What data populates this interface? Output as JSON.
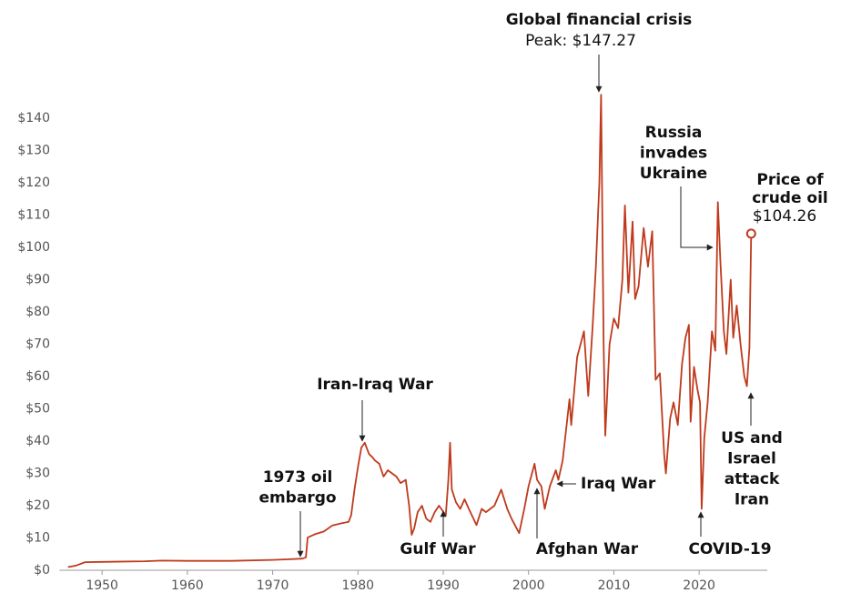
{
  "chart_data": {
    "type": "line",
    "series": [
      {
        "name": "Price of crude oil",
        "color": "#bf3a1c",
        "x": [
          1946,
          1947,
          1948,
          1950,
          1955,
          1957,
          1960,
          1965,
          1970,
          1972,
          1973.5,
          1973.9,
          1974.1,
          1975,
          1976,
          1977,
          1978,
          1978.9,
          1979.2,
          1979.6,
          1980.0,
          1980.4,
          1980.8,
          1981.0,
          1981.3,
          1981.7,
          1982,
          1982.5,
          1983,
          1983.5,
          1984,
          1984.5,
          1985,
          1985.6,
          1986.0,
          1986.3,
          1986.6,
          1987,
          1987.5,
          1988,
          1988.5,
          1989,
          1989.5,
          1990.3,
          1990.6,
          1990.8,
          1991.0,
          1991.5,
          1992,
          1992.5,
          1993,
          1993.9,
          1994.5,
          1995,
          1996,
          1996.8,
          1997.5,
          1998,
          1998.9,
          1999.5,
          2000,
          2000.7,
          2001,
          2001.5,
          2001.9,
          2002.5,
          2003.2,
          2003.5,
          2004,
          2004.8,
          2005,
          2005.7,
          2006.5,
          2007.0,
          2007.5,
          2007.9,
          2008.3,
          2008.5,
          2008.8,
          2009.0,
          2009.5,
          2010,
          2010.5,
          2011.0,
          2011.3,
          2011.7,
          2012.2,
          2012.5,
          2012.9,
          2013.5,
          2014.0,
          2014.5,
          2014.9,
          2015.4,
          2015.9,
          2016.1,
          2016.6,
          2017,
          2017.5,
          2018.0,
          2018.4,
          2018.8,
          2019.0,
          2019.4,
          2019.8,
          2020.1,
          2020.3,
          2020.6,
          2021.0,
          2021.5,
          2021.9,
          2022.2,
          2022.5,
          2022.9,
          2023.2,
          2023.7,
          2024.0,
          2024.4,
          2024.9,
          2025.3,
          2025.6,
          2025.9,
          2026.1
        ],
        "values": [
          1.0,
          1.5,
          2.5,
          2.6,
          2.8,
          3.0,
          2.9,
          2.9,
          3.2,
          3.4,
          3.6,
          4.0,
          10.1,
          11.2,
          12.0,
          13.9,
          14.5,
          15,
          17,
          25,
          32,
          38,
          39.5,
          38,
          36,
          35,
          34,
          33,
          29,
          31,
          30,
          29,
          27,
          28,
          20,
          11,
          13,
          18,
          20,
          16,
          15,
          18,
          20,
          17,
          28,
          39.5,
          25,
          21,
          19,
          22,
          19,
          14,
          19,
          18,
          20,
          25,
          19,
          16,
          11.5,
          19,
          26,
          33,
          28,
          26,
          19,
          26,
          31,
          28,
          34,
          53,
          45,
          66,
          74,
          54,
          75,
          94,
          120,
          147.27,
          70,
          41.7,
          70,
          78,
          75,
          90,
          113,
          86,
          108,
          84,
          88,
          106,
          94,
          105,
          59,
          61,
          36,
          30,
          47,
          52,
          45,
          64,
          72,
          76,
          46,
          63,
          56,
          52,
          19,
          41,
          52,
          74,
          68,
          114,
          95,
          74,
          67,
          90,
          72,
          82,
          69,
          60,
          57,
          69,
          104.26
        ]
      }
    ],
    "xlim": [
      1945,
      2028
    ],
    "xticks": [
      1950,
      1960,
      1970,
      1980,
      1990,
      2000,
      2010,
      2020
    ],
    "ylim": [
      0,
      150
    ],
    "yticks": [
      {
        "value": 0,
        "label": "$0"
      },
      {
        "value": 10,
        "label": "$10"
      },
      {
        "value": 20,
        "label": "$20"
      },
      {
        "value": 30,
        "label": "$30"
      },
      {
        "value": 40,
        "label": "$40"
      },
      {
        "value": 50,
        "label": "$50"
      },
      {
        "value": 60,
        "label": "$60"
      },
      {
        "value": 70,
        "label": "$70"
      },
      {
        "value": 80,
        "label": "$80"
      },
      {
        "value": 90,
        "label": "$90"
      },
      {
        "value": 100,
        "label": "$100"
      },
      {
        "value": 110,
        "label": "$110"
      },
      {
        "value": 120,
        "label": "$120"
      },
      {
        "value": 130,
        "label": "$130"
      },
      {
        "value": 140,
        "label": "$140"
      }
    ],
    "grid": false,
    "annotations": [
      [
        "1973 oil",
        "embargo"
      ],
      [
        "Iran-Iraq War"
      ],
      [
        "Gulf War"
      ],
      [
        "Afghan War"
      ],
      [
        "Iraq War"
      ],
      [
        "Global financial crisis"
      ],
      [
        "Russia",
        "invades",
        "Ukraine"
      ],
      [
        "Price of",
        "crude oil"
      ],
      [
        "US and",
        "Israel",
        "attack",
        "Iran"
      ],
      [
        "COVID-19"
      ]
    ],
    "peak_label": "Peak: $147.27",
    "end_label": "$104.26"
  }
}
